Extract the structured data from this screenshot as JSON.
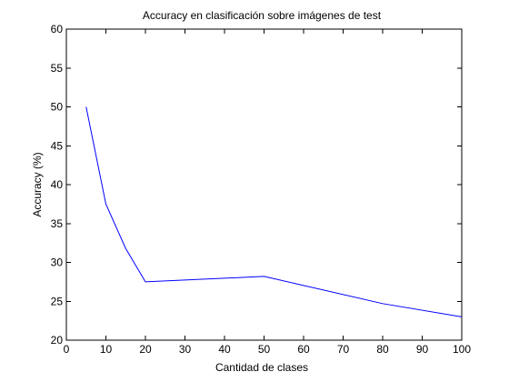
{
  "chart_data": {
    "type": "line",
    "title": "Accuracy en clasificación sobre imágenes de test",
    "xlabel": "Cantidad de clases",
    "ylabel": "Accuracy (%)",
    "xlim": [
      0,
      100
    ],
    "ylim": [
      20,
      60
    ],
    "xticks": [
      0,
      10,
      20,
      30,
      40,
      50,
      60,
      70,
      80,
      90,
      100
    ],
    "yticks": [
      20,
      25,
      30,
      35,
      40,
      45,
      50,
      55,
      60
    ],
    "grid": false,
    "legend": "none",
    "series": [
      {
        "color": "#0000ff",
        "x": [
          5,
          10,
          15,
          20,
          50,
          80,
          100
        ],
        "y": [
          50.0,
          37.5,
          31.8,
          27.5,
          28.2,
          24.7,
          23.0
        ]
      }
    ]
  }
}
